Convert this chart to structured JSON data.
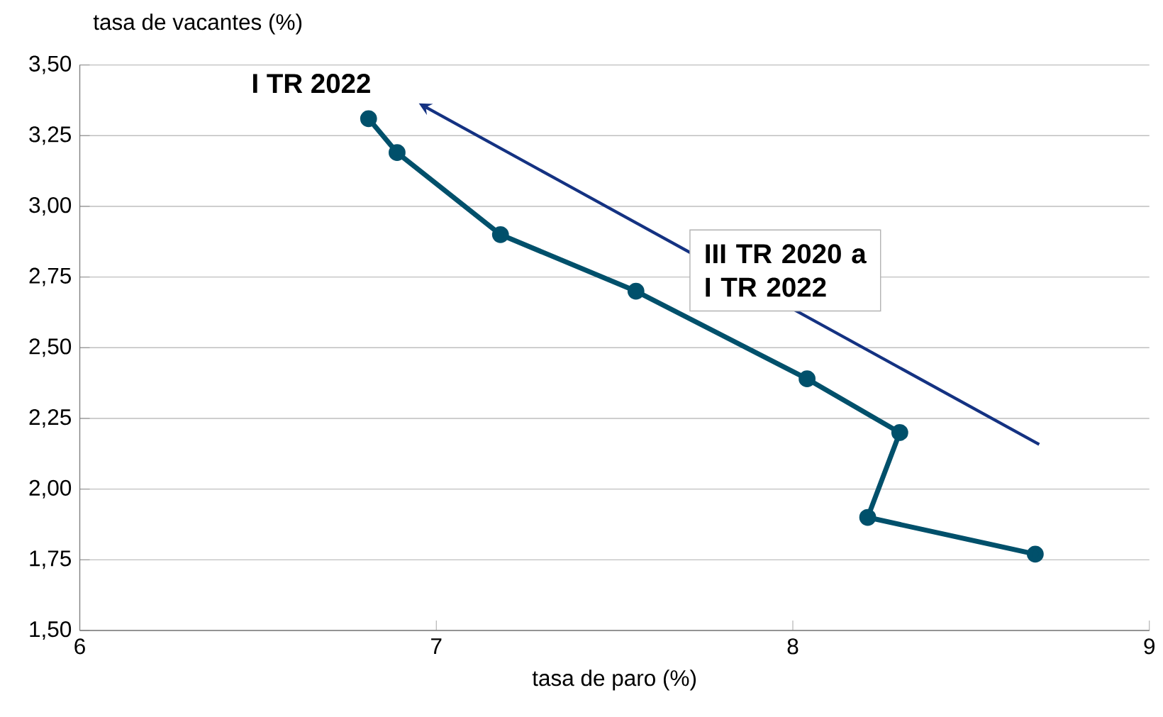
{
  "chart_data": {
    "type": "line",
    "xlabel": "tasa de paro (%)",
    "ylabel": "tasa de vacantes (%)",
    "x": [
      8.68,
      8.21,
      8.3,
      8.04,
      7.56,
      7.18,
      6.89,
      6.81
    ],
    "series": [
      {
        "color": "#00506b",
        "values": [
          1.77,
          1.9,
          2.2,
          2.39,
          2.7,
          2.9,
          3.19,
          3.31
        ]
      }
    ],
    "xlim": [
      6,
      9
    ],
    "xticks": [
      6,
      7,
      8,
      9
    ],
    "ylim": [
      1.5,
      3.5
    ],
    "yticks": [
      {
        "value": 1.5,
        "label": "1,50"
      },
      {
        "value": 1.75,
        "label": "1,75"
      },
      {
        "value": 2.0,
        "label": "2,00"
      },
      {
        "value": 2.25,
        "label": "2,25"
      },
      {
        "value": 2.5,
        "label": "2,50"
      },
      {
        "value": 2.75,
        "label": "2,75"
      },
      {
        "value": 3.0,
        "label": "3,00"
      },
      {
        "value": 3.25,
        "label": "3,25"
      },
      {
        "value": 3.5,
        "label": "3,50"
      }
    ],
    "grid": "y",
    "marker": "circle",
    "line_style": "solid",
    "annotations": [
      {
        "text": "I TR 2022",
        "x": 6.81,
        "y": 3.31
      },
      "III TR 2020 a I TR 2022"
    ]
  }
}
